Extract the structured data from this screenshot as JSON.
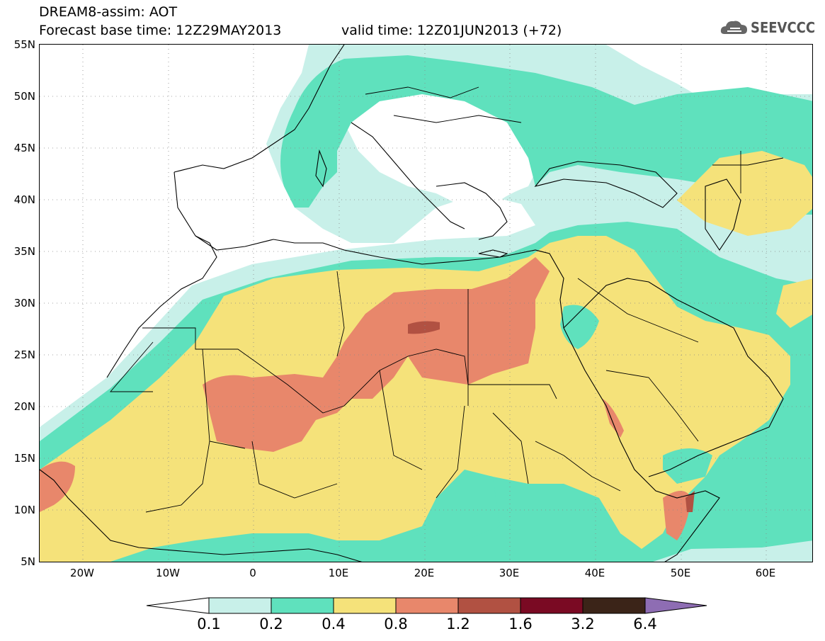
{
  "header": {
    "title_line1": "DREAM8-assim: AOT",
    "title_line2": "Forecast base time: 12Z29MAY2013",
    "valid_time": "valid time: 12Z01JUN2013 (+72)",
    "logo_text": "SEEVCCC",
    "logo_icon": "cloud-icon"
  },
  "map": {
    "lat_labels": [
      "55N",
      "50N",
      "45N",
      "40N",
      "35N",
      "30N",
      "25N",
      "20N",
      "15N",
      "10N",
      "5N"
    ],
    "lon_labels": [
      "20W",
      "10W",
      "0",
      "10E",
      "20E",
      "30E",
      "40E",
      "50E",
      "60E"
    ]
  },
  "colorbar": {
    "levels": [
      "0.1",
      "0.2",
      "0.4",
      "0.8",
      "1.2",
      "1.6",
      "3.2",
      "6.4"
    ],
    "colors": [
      "#ffffff",
      "#c8f0e9",
      "#5fe1bd",
      "#f5e27a",
      "#e8876b",
      "#b15142",
      "#7a0a23",
      "#3b2418",
      "#8e6db3"
    ]
  },
  "colors": {
    "aot_0_1": "#c8f0e9",
    "aot_0_2": "#5fe1bd",
    "aot_0_4": "#f5e27a",
    "aot_0_8": "#e8876b",
    "aot_1_2": "#b15142"
  }
}
